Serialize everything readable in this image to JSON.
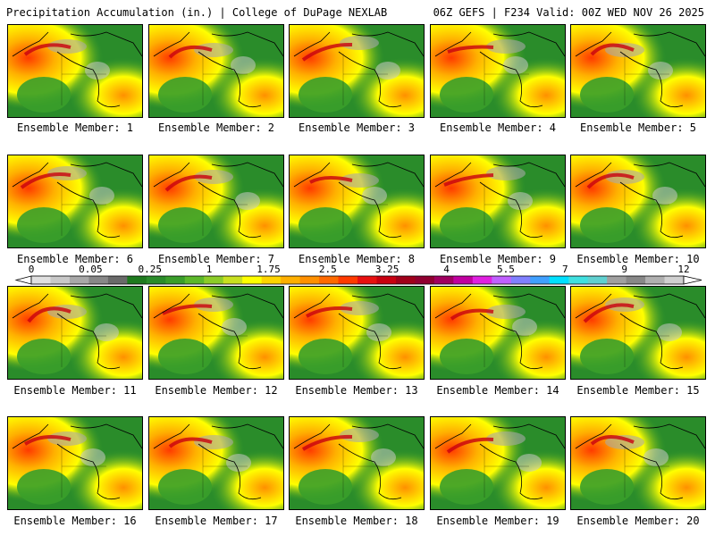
{
  "header": {
    "left": "Precipitation Accumulation (in.) | College of DuPage NEXLAB",
    "right": "06Z GEFS | F234 Valid: 00Z WED NOV 26 2025"
  },
  "members": [
    "Ensemble Member: 1",
    "Ensemble Member: 2",
    "Ensemble Member: 3",
    "Ensemble Member: 4",
    "Ensemble Member: 5",
    "Ensemble Member: 6",
    "Ensemble Member: 7",
    "Ensemble Member: 8",
    "Ensemble Member: 9",
    "Ensemble Member: 10",
    "Ensemble Member: 11",
    "Ensemble Member: 12",
    "Ensemble Member: 13",
    "Ensemble Member: 14",
    "Ensemble Member: 15",
    "Ensemble Member: 16",
    "Ensemble Member: 17",
    "Ensemble Member: 18",
    "Ensemble Member: 19",
    "Ensemble Member: 20"
  ],
  "scale": {
    "ticks": [
      "0",
      "0.05",
      "0.25",
      "1",
      "1.75",
      "2.5",
      "3.25",
      "4",
      "5.5",
      "7",
      "9",
      "12"
    ],
    "colors": [
      "#e0e0e0",
      "#c8c8c8",
      "#a8a8a8",
      "#888888",
      "#6a6a6a",
      "#1e7a1e",
      "#2a8c2a",
      "#3a9e2a",
      "#5cb82a",
      "#8ccc28",
      "#c8e020",
      "#ffff00",
      "#ffd400",
      "#ffb000",
      "#ff9000",
      "#ff6a00",
      "#ff3a00",
      "#e81010",
      "#c80010",
      "#a0001a",
      "#900030",
      "#a00060",
      "#c000a0",
      "#e020e0",
      "#c060ff",
      "#8080ff",
      "#40a0ff",
      "#00e0ff",
      "#40e0e0",
      "#60d0d0",
      "#a0a0a0",
      "#888888",
      "#b0b0b0",
      "#d0d0d0"
    ]
  }
}
